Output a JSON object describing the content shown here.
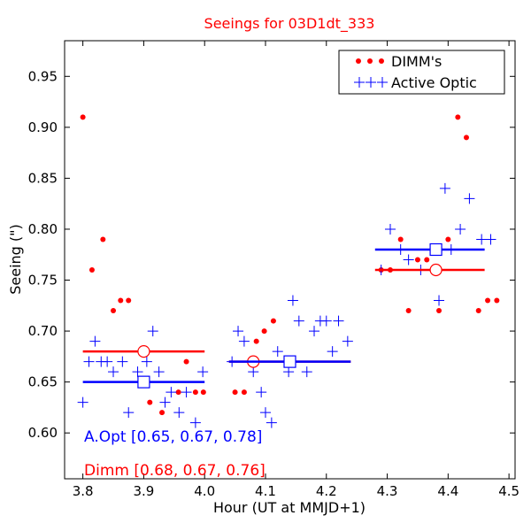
{
  "chart_data": {
    "type": "scatter",
    "title": "Seeings for 03D1dt_333",
    "xlabel": "Hour (UT at MMJD+1)",
    "ylabel": "Seeing (\")",
    "xlim": [
      3.77,
      4.51
    ],
    "ylim": [
      0.555,
      0.985
    ],
    "xticks": [
      3.8,
      3.9,
      4.0,
      4.1,
      4.2,
      4.3,
      4.4,
      4.5
    ],
    "xtick_labels": [
      "3.8",
      "3.9",
      "4.0",
      "4.1",
      "4.2",
      "4.3",
      "4.4",
      "4.5"
    ],
    "yticks": [
      0.6,
      0.65,
      0.7,
      0.75,
      0.8,
      0.85,
      0.9,
      0.95
    ],
    "ytick_labels": [
      "0.60",
      "0.65",
      "0.70",
      "0.75",
      "0.80",
      "0.85",
      "0.90",
      "0.95"
    ],
    "grid": false,
    "legend_position": "top-right",
    "colors": {
      "dimm": "#ff0000",
      "active_optic": "#0000ff",
      "title": "#ff0000"
    },
    "series": [
      {
        "name": "DIMM's",
        "marker": "dot",
        "color": "#ff0000",
        "points": [
          [
            3.8,
            0.91
          ],
          [
            3.815,
            0.76
          ],
          [
            3.833,
            0.79
          ],
          [
            3.85,
            0.72
          ],
          [
            3.862,
            0.73
          ],
          [
            3.875,
            0.73
          ],
          [
            3.91,
            0.63
          ],
          [
            3.93,
            0.62
          ],
          [
            3.957,
            0.64
          ],
          [
            3.97,
            0.67
          ],
          [
            3.985,
            0.64
          ],
          [
            3.998,
            0.64
          ],
          [
            4.05,
            0.64
          ],
          [
            4.065,
            0.64
          ],
          [
            4.085,
            0.69
          ],
          [
            4.098,
            0.7
          ],
          [
            4.113,
            0.71
          ],
          [
            4.29,
            0.76
          ],
          [
            4.305,
            0.76
          ],
          [
            4.322,
            0.79
          ],
          [
            4.335,
            0.72
          ],
          [
            4.35,
            0.77
          ],
          [
            4.365,
            0.77
          ],
          [
            4.385,
            0.72
          ],
          [
            4.4,
            0.79
          ],
          [
            4.416,
            0.91
          ],
          [
            4.43,
            0.89
          ],
          [
            4.45,
            0.72
          ],
          [
            4.465,
            0.73
          ],
          [
            4.48,
            0.73
          ]
        ]
      },
      {
        "name": "Active Optic",
        "marker": "plus",
        "color": "#0000ff",
        "points": [
          [
            3.8,
            0.63
          ],
          [
            3.81,
            0.67
          ],
          [
            3.82,
            0.69
          ],
          [
            3.83,
            0.67
          ],
          [
            3.84,
            0.67
          ],
          [
            3.85,
            0.66
          ],
          [
            3.865,
            0.67
          ],
          [
            3.875,
            0.62
          ],
          [
            3.89,
            0.66
          ],
          [
            3.905,
            0.67
          ],
          [
            3.915,
            0.7
          ],
          [
            3.925,
            0.66
          ],
          [
            3.935,
            0.63
          ],
          [
            3.945,
            0.64
          ],
          [
            3.958,
            0.62
          ],
          [
            3.97,
            0.64
          ],
          [
            3.985,
            0.61
          ],
          [
            3.997,
            0.66
          ],
          [
            4.045,
            0.67
          ],
          [
            4.055,
            0.7
          ],
          [
            4.065,
            0.69
          ],
          [
            4.08,
            0.66
          ],
          [
            4.093,
            0.64
          ],
          [
            4.1,
            0.62
          ],
          [
            4.11,
            0.61
          ],
          [
            4.12,
            0.68
          ],
          [
            4.138,
            0.66
          ],
          [
            4.145,
            0.73
          ],
          [
            4.155,
            0.71
          ],
          [
            4.168,
            0.66
          ],
          [
            4.18,
            0.7
          ],
          [
            4.19,
            0.71
          ],
          [
            4.2,
            0.71
          ],
          [
            4.21,
            0.68
          ],
          [
            4.22,
            0.71
          ],
          [
            4.235,
            0.69
          ],
          [
            4.29,
            0.76
          ],
          [
            4.305,
            0.8
          ],
          [
            4.322,
            0.78
          ],
          [
            4.335,
            0.77
          ],
          [
            4.355,
            0.76
          ],
          [
            4.385,
            0.73
          ],
          [
            4.395,
            0.84
          ],
          [
            4.405,
            0.78
          ],
          [
            4.42,
            0.8
          ],
          [
            4.435,
            0.83
          ],
          [
            4.455,
            0.79
          ],
          [
            4.47,
            0.79
          ]
        ]
      }
    ],
    "segments": [
      {
        "series": "DIMM's",
        "x": [
          3.8,
          4.0
        ],
        "mean": 0.68,
        "marker_x": 3.9,
        "marker": "circle",
        "color": "#ff0000"
      },
      {
        "series": "DIMM's",
        "x": [
          4.04,
          4.24
        ],
        "mean": 0.67,
        "marker_x": 4.08,
        "marker": "circle",
        "color": "#ff0000"
      },
      {
        "series": "DIMM's",
        "x": [
          4.28,
          4.46
        ],
        "mean": 0.76,
        "marker_x": 4.38,
        "marker": "circle",
        "color": "#ff0000"
      },
      {
        "series": "Active Optic",
        "x": [
          3.8,
          4.0
        ],
        "mean": 0.65,
        "marker_x": 3.9,
        "marker": "square",
        "color": "#0000ff"
      },
      {
        "series": "Active Optic",
        "x": [
          4.04,
          4.24
        ],
        "mean": 0.67,
        "marker_x": 4.14,
        "marker": "square",
        "color": "#0000ff"
      },
      {
        "series": "Active Optic",
        "x": [
          4.28,
          4.46
        ],
        "mean": 0.78,
        "marker_x": 4.38,
        "marker": "square",
        "color": "#0000ff"
      }
    ],
    "annotations": [
      {
        "text": "A.Opt [0.65, 0.67, 0.78]",
        "color": "#0000ff"
      },
      {
        "text": "Dimm [0.68, 0.67, 0.76]",
        "color": "#ff0000"
      }
    ]
  }
}
